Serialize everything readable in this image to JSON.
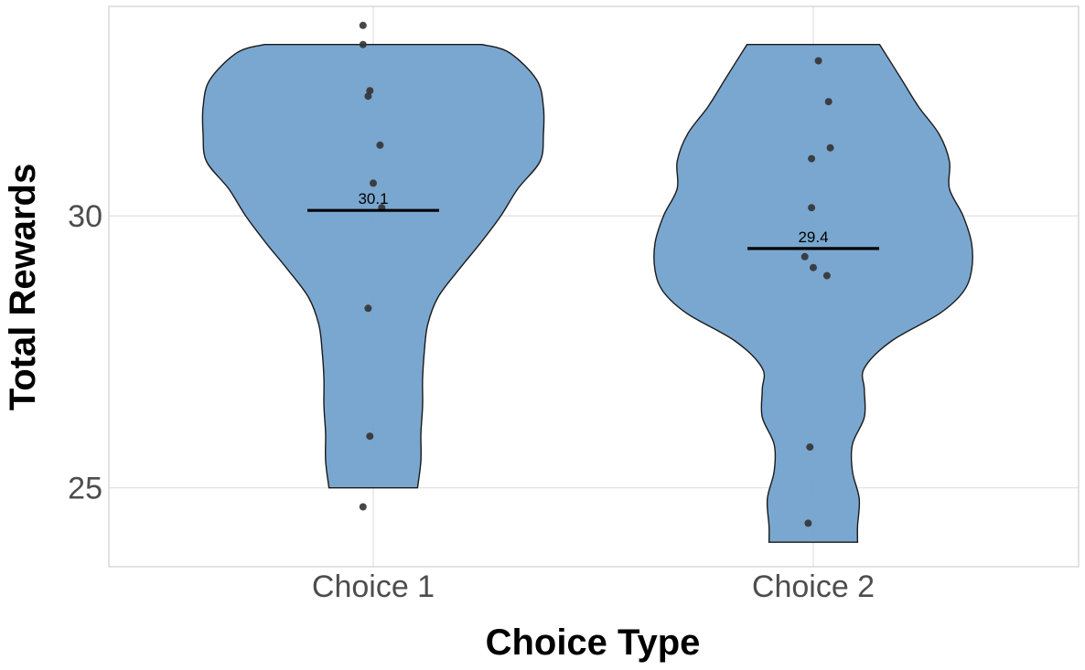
{
  "chart_data": {
    "type": "violin",
    "title": "",
    "xlabel": "Choice Type",
    "ylabel": "Total Rewards",
    "categories": [
      "Choice 1",
      "Choice 2"
    ],
    "y_ticks": [
      25,
      30
    ],
    "y_tick_labels": [
      "25",
      "30"
    ],
    "ylim": [
      23.55,
      33.85
    ],
    "grid": true,
    "legend": "none",
    "colors": {
      "violin_fill": "#6f9fcb",
      "violin_stroke": "#1a1a1a",
      "point": "#333333",
      "mean_line": "#000000",
      "grid": "#e0e0e0",
      "panel_border": "#cfcfcf"
    },
    "groups": [
      {
        "name": "Choice 1",
        "mean": 30.1,
        "mean_label": "30.1",
        "points": [
          33.5,
          33.15,
          32.3,
          32.2,
          31.3,
          30.6,
          30.15,
          28.3,
          25.95,
          24.65
        ],
        "jitter": [
          -0.06,
          -0.06,
          -0.02,
          -0.03,
          0.04,
          0.0,
          0.05,
          -0.03,
          -0.02,
          -0.06
        ],
        "violin_profile": [
          [
            25.0,
            0.26
          ],
          [
            25.5,
            0.28
          ],
          [
            26.0,
            0.28
          ],
          [
            26.5,
            0.29
          ],
          [
            27.0,
            0.29
          ],
          [
            27.5,
            0.3
          ],
          [
            28.0,
            0.32
          ],
          [
            28.5,
            0.38
          ],
          [
            29.0,
            0.5
          ],
          [
            29.5,
            0.63
          ],
          [
            30.0,
            0.75
          ],
          [
            30.5,
            0.85
          ],
          [
            31.0,
            0.98
          ],
          [
            31.5,
            1.0
          ],
          [
            32.0,
            1.0
          ],
          [
            32.5,
            0.96
          ],
          [
            33.0,
            0.8
          ],
          [
            33.15,
            0.64
          ]
        ]
      },
      {
        "name": "Choice 2",
        "mean": 29.4,
        "mean_label": "29.4",
        "points": [
          32.85,
          32.1,
          31.25,
          31.05,
          30.15,
          29.25,
          29.05,
          28.9,
          25.75,
          24.35
        ],
        "jitter": [
          0.03,
          0.09,
          0.1,
          -0.01,
          -0.01,
          -0.05,
          -0.0,
          0.08,
          -0.02,
          -0.03
        ],
        "violin_profile": [
          [
            24.0,
            0.26
          ],
          [
            24.3,
            0.26
          ],
          [
            24.8,
            0.27
          ],
          [
            25.3,
            0.23
          ],
          [
            25.8,
            0.23
          ],
          [
            26.3,
            0.3
          ],
          [
            26.8,
            0.3
          ],
          [
            27.2,
            0.3
          ],
          [
            27.7,
            0.46
          ],
          [
            28.2,
            0.74
          ],
          [
            28.6,
            0.88
          ],
          [
            29.0,
            0.93
          ],
          [
            29.5,
            0.93
          ],
          [
            30.0,
            0.88
          ],
          [
            30.5,
            0.8
          ],
          [
            31.0,
            0.8
          ],
          [
            31.5,
            0.74
          ],
          [
            32.0,
            0.62
          ],
          [
            32.5,
            0.52
          ],
          [
            33.15,
            0.39
          ]
        ]
      }
    ]
  }
}
